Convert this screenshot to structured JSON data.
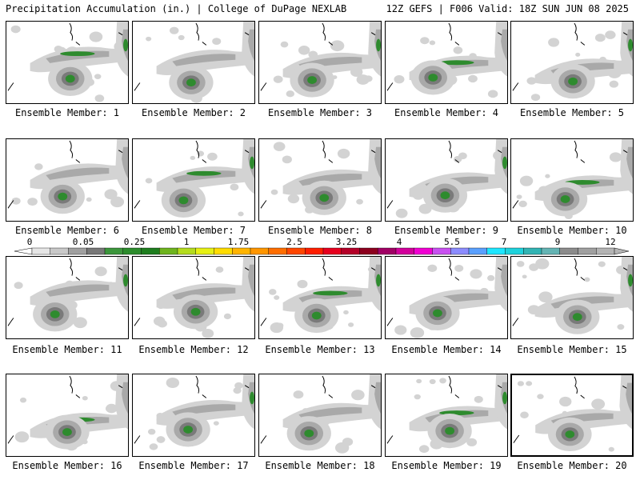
{
  "header": {
    "left_title": "Precipitation Accumulation (in.) | College of DuPage NEXLAB",
    "right_title": "12Z GEFS | F006 Valid: 18Z SUN JUN 08 2025"
  },
  "panels": [
    {
      "label": "Ensemble Member: 1"
    },
    {
      "label": "Ensemble Member: 2"
    },
    {
      "label": "Ensemble Member: 3"
    },
    {
      "label": "Ensemble Member: 4"
    },
    {
      "label": "Ensemble Member: 5"
    },
    {
      "label": "Ensemble Member: 6"
    },
    {
      "label": "Ensemble Member: 7"
    },
    {
      "label": "Ensemble Member: 8"
    },
    {
      "label": "Ensemble Member: 9"
    },
    {
      "label": "Ensemble Member: 10"
    },
    {
      "label": "Ensemble Member: 11"
    },
    {
      "label": "Ensemble Member: 12"
    },
    {
      "label": "Ensemble Member: 13"
    },
    {
      "label": "Ensemble Member: 14"
    },
    {
      "label": "Ensemble Member: 15"
    },
    {
      "label": "Ensemble Member: 16"
    },
    {
      "label": "Ensemble Member: 17"
    },
    {
      "label": "Ensemble Member: 18"
    },
    {
      "label": "Ensemble Member: 19"
    },
    {
      "label": "Ensemble Member: 20"
    }
  ],
  "colorbar": {
    "tick_labels": [
      "0",
      "0.05",
      "0.25",
      "1",
      "1.75",
      "2.5",
      "3.25",
      "4",
      "5.5",
      "7",
      "9",
      "12"
    ],
    "colors": [
      "#e6e6e6",
      "#c8c8c8",
      "#a0a0a0",
      "#787878",
      "#3c963c",
      "#2d8c2d",
      "#1e7d1e",
      "#6eb41e",
      "#b4dc1e",
      "#e6f014",
      "#ffdc00",
      "#ffb400",
      "#ff9600",
      "#ff6e00",
      "#ff4600",
      "#ff1e00",
      "#e6001e",
      "#b40028",
      "#8c001e",
      "#a00064",
      "#d2009b",
      "#f000d2",
      "#c850f0",
      "#8c8cff",
      "#5aa0ff",
      "#1ee6ff",
      "#1ed2dc",
      "#32b4b4",
      "#64b4b4",
      "#8c8c8c",
      "#a0a0a0",
      "#b4b4b4"
    ]
  },
  "map_colors": {
    "light": "#d3d3d3",
    "mid": "#a9a9a9",
    "dark": "#7a7a7a",
    "green": "#2e8b2e",
    "line": "#000000"
  }
}
